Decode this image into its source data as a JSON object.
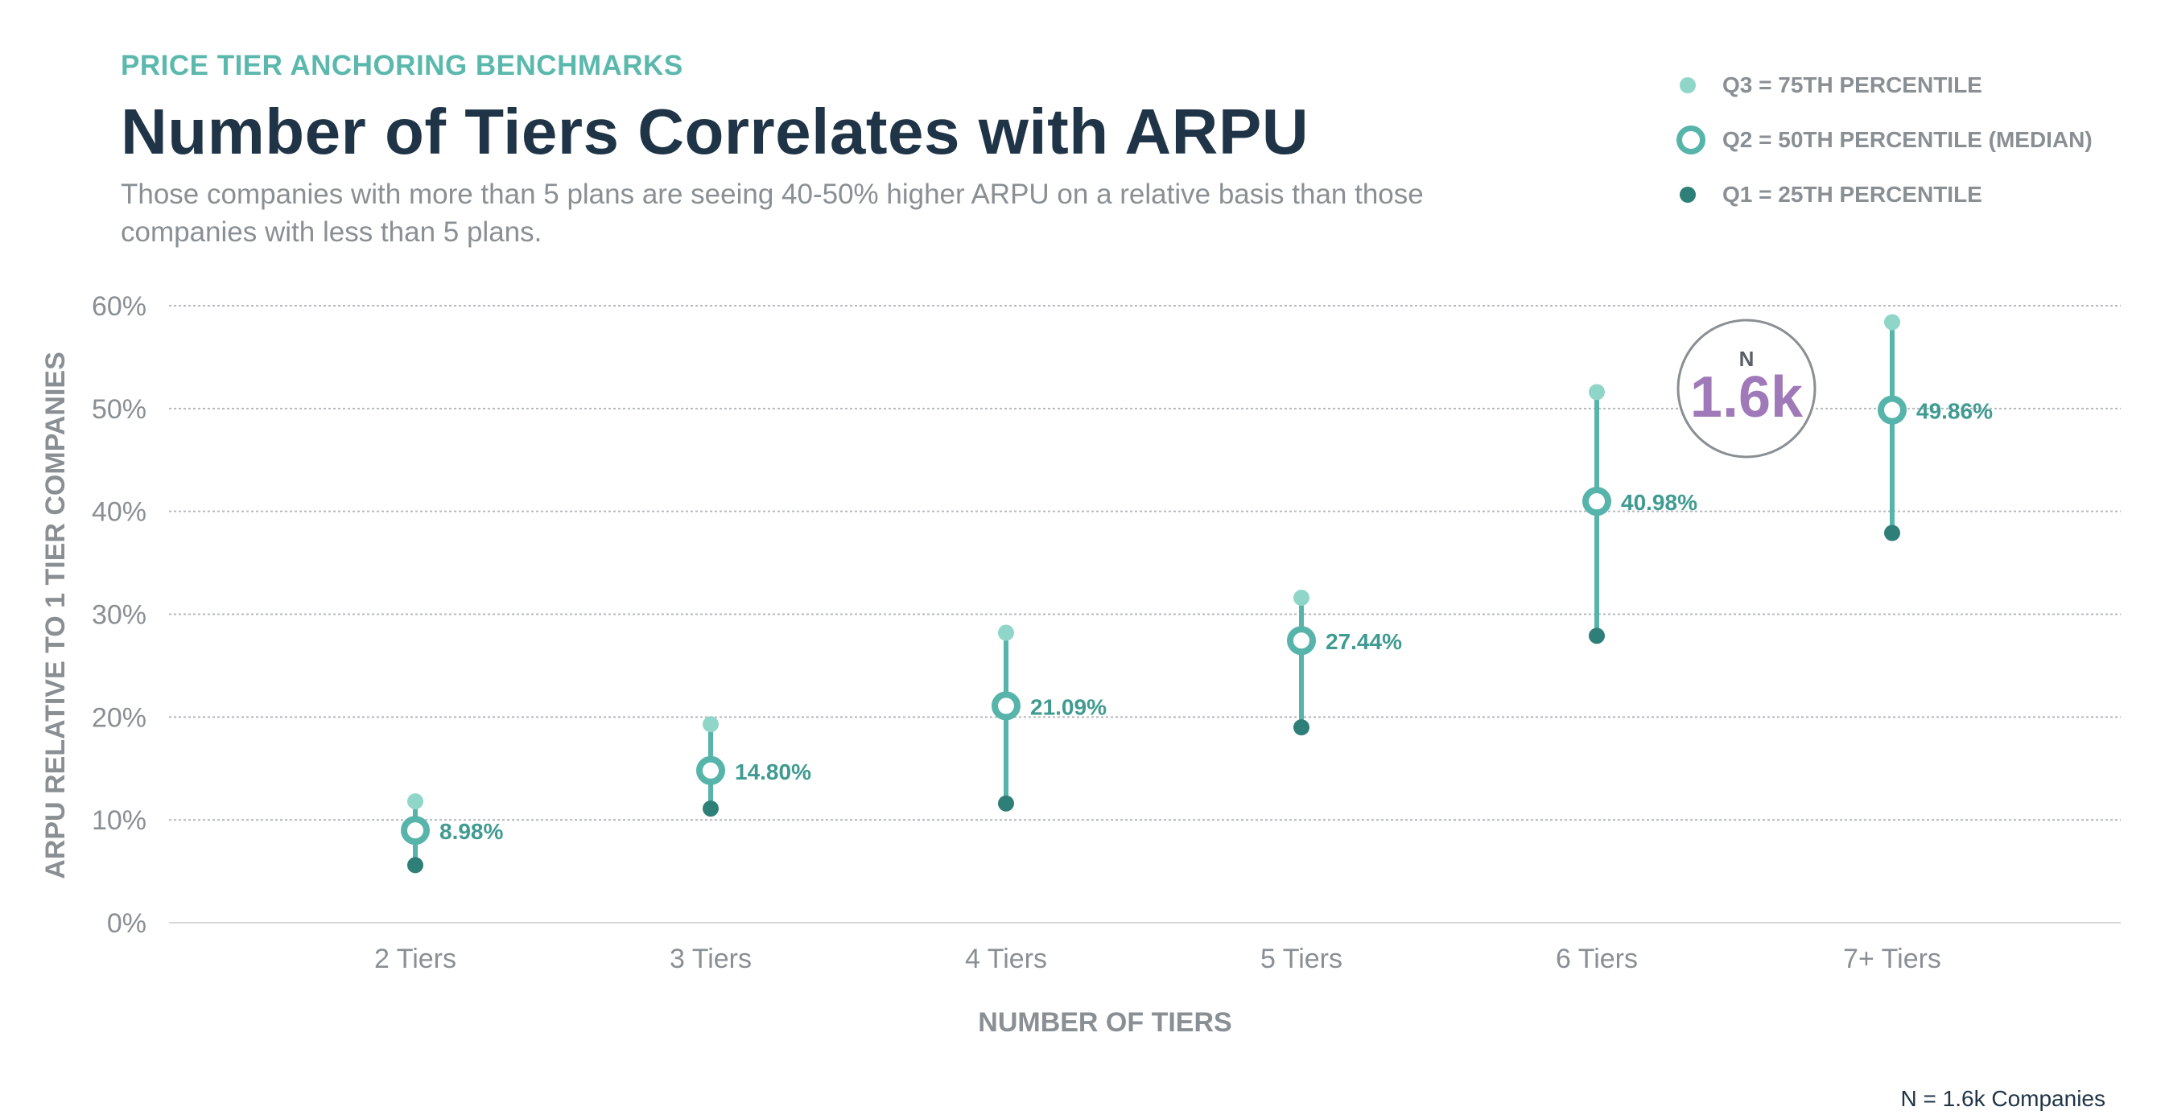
{
  "header": {
    "eyebrow": "PRICE TIER ANCHORING BENCHMARKS",
    "title": "Number of Tiers Correlates with ARPU",
    "subtitle": "Those companies with more than 5 plans are seeing 40-50% higher ARPU on a relative basis than those companies with less than 5 plans."
  },
  "legend": [
    {
      "key": "q3",
      "label": "Q3 = 75TH PERCENTILE"
    },
    {
      "key": "q2",
      "label": "Q2 = 50TH PERCENTILE (MEDIAN)"
    },
    {
      "key": "q1",
      "label": "Q1 = 25TH PERCENTILE"
    }
  ],
  "badge": {
    "label": "N",
    "value": "1.6k"
  },
  "footnote": "N = 1.6k Companies",
  "colors": {
    "eyebrow": "#5bb8ad",
    "q3": "#8fd6c9",
    "q2": "#56b4aa",
    "q1": "#2e7f77",
    "range_line": "#56b4aa",
    "median_label": "#3f9b91",
    "badge_value": "#a07ab8"
  },
  "chart_data": {
    "type": "scatter",
    "title": "Number of Tiers Correlates with ARPU",
    "xlabel": "NUMBER OF TIERS",
    "ylabel": "ARPU RELATIVE TO 1 TIER COMPANIES",
    "categories": [
      "2 Tiers",
      "3 Tiers",
      "4 Tiers",
      "5 Tiers",
      "6 Tiers",
      "7+ Tiers"
    ],
    "ylim": [
      0,
      60
    ],
    "yticks": [
      0,
      10,
      20,
      30,
      40,
      50,
      60
    ],
    "ytick_labels": [
      "0%",
      "10%",
      "20%",
      "30%",
      "40%",
      "50%",
      "60%"
    ],
    "grid": true,
    "legend_position": "top-right",
    "series": [
      {
        "name": "Q3 = 75TH PERCENTILE",
        "values": [
          11.8,
          19.3,
          28.2,
          31.6,
          51.6,
          58.4
        ]
      },
      {
        "name": "Q2 = 50TH PERCENTILE (MEDIAN)",
        "values": [
          8.98,
          14.8,
          21.09,
          27.44,
          40.98,
          49.86
        ]
      },
      {
        "name": "Q1 = 25TH PERCENTILE",
        "values": [
          5.6,
          11.1,
          11.6,
          19.0,
          27.9,
          37.9
        ]
      }
    ],
    "median_labels": [
      "8.98%",
      "14.80%",
      "21.09%",
      "27.44%",
      "40.98%",
      "49.86%"
    ]
  }
}
